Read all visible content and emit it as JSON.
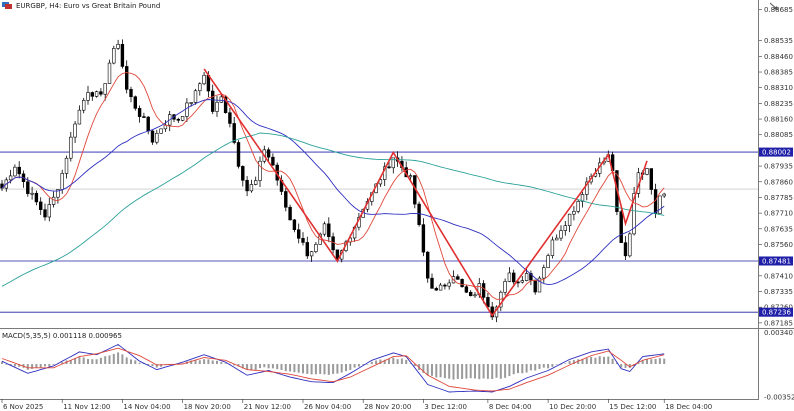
{
  "header": {
    "title": "EURGBP, H4:  Euro vs Great Britain Pound",
    "macd_label": "MACD(5,35,5) 0.001118 0.000965"
  },
  "colors": {
    "bull": "#ffffff",
    "bear": "#000000",
    "ma_fast": "#e0473a",
    "ma_mid": "#2f2fc0",
    "ma_slow": "#2aa198",
    "zigzag": "#e03030",
    "level": "#1f1fa8",
    "macd_line": "#2f2fc0",
    "signal_line": "#e0473a",
    "hist": "#9a9a9a"
  },
  "chart_data": [
    {
      "type": "candlestick",
      "symbol": "EURGBP",
      "timeframe": "H4",
      "x_labels": [
        "6 Nov 2025",
        "11 Nov 12:00",
        "14 Nov 04:00",
        "18 Nov 20:00",
        "21 Nov 12:00",
        "26 Nov 04:00",
        "28 Nov 20:00",
        "3 Dec 12:00",
        "8 Dec 04:00",
        "10 Dec 20:00",
        "15 Dec 12:00",
        "18 Dec 04:00"
      ],
      "y_ticks": [
        "0.88685",
        "0.88535",
        "0.88460",
        "0.88385",
        "0.88310",
        "0.88235",
        "0.88160",
        "0.88085",
        "0.87935",
        "0.87860",
        "0.87785",
        "0.87710",
        "0.87635",
        "0.87560",
        "0.87410",
        "0.87335",
        "0.87260",
        "0.87185"
      ],
      "ylim": [
        0.8717,
        0.8872
      ],
      "levels": [
        {
          "label": "0.88002",
          "value": 0.88002
        },
        {
          "label": "0.87481",
          "value": 0.87481
        },
        {
          "label": "0.87236",
          "value": 0.87236
        }
      ],
      "current_price": 0.87825,
      "zigzag": [
        {
          "bar": 47,
          "price": 0.884
        },
        {
          "bar": 78,
          "price": 0.8748
        },
        {
          "bar": 91,
          "price": 0.88
        },
        {
          "bar": 114,
          "price": 0.8722
        },
        {
          "bar": 141,
          "price": 0.8799
        },
        {
          "bar": 145,
          "price": 0.8766
        },
        {
          "bar": 150,
          "price": 0.8796
        }
      ],
      "waypoints": [
        [
          0,
          0.8783
        ],
        [
          3,
          0.8794
        ],
        [
          6,
          0.8782
        ],
        [
          8,
          0.8776
        ],
        [
          10,
          0.877
        ],
        [
          12,
          0.8778
        ],
        [
          14,
          0.879
        ],
        [
          17,
          0.8815
        ],
        [
          20,
          0.883
        ],
        [
          23,
          0.8826
        ],
        [
          25,
          0.8843
        ],
        [
          27,
          0.8853
        ],
        [
          29,
          0.883
        ],
        [
          31,
          0.8822
        ],
        [
          33,
          0.8815
        ],
        [
          35,
          0.8806
        ],
        [
          37,
          0.8812
        ],
        [
          39,
          0.8817
        ],
        [
          41,
          0.8816
        ],
        [
          43,
          0.8822
        ],
        [
          45,
          0.8828
        ],
        [
          47,
          0.8838
        ],
        [
          49,
          0.882
        ],
        [
          51,
          0.8826
        ],
        [
          53,
          0.8815
        ],
        [
          55,
          0.8795
        ],
        [
          57,
          0.8782
        ],
        [
          59,
          0.8786
        ],
        [
          61,
          0.8802
        ],
        [
          63,
          0.8794
        ],
        [
          65,
          0.878
        ],
        [
          67,
          0.8768
        ],
        [
          69,
          0.876
        ],
        [
          71,
          0.8752
        ],
        [
          73,
          0.8755
        ],
        [
          75,
          0.8764
        ],
        [
          77,
          0.8752
        ],
        [
          78,
          0.8748
        ],
        [
          80,
          0.8757
        ],
        [
          82,
          0.8765
        ],
        [
          84,
          0.8774
        ],
        [
          86,
          0.878
        ],
        [
          88,
          0.8788
        ],
        [
          91,
          0.8798
        ],
        [
          93,
          0.8793
        ],
        [
          95,
          0.8787
        ],
        [
          97,
          0.8764
        ],
        [
          99,
          0.874
        ],
        [
          101,
          0.8733
        ],
        [
          103,
          0.8737
        ],
        [
          105,
          0.8742
        ],
        [
          107,
          0.8735
        ],
        [
          109,
          0.873
        ],
        [
          111,
          0.8736
        ],
        [
          113,
          0.8728
        ],
        [
          114,
          0.8723
        ],
        [
          116,
          0.8733
        ],
        [
          118,
          0.8741
        ],
        [
          120,
          0.8738
        ],
        [
          122,
          0.8743
        ],
        [
          124,
          0.8735
        ],
        [
          126,
          0.8746
        ],
        [
          128,
          0.8757
        ],
        [
          130,
          0.8764
        ],
        [
          132,
          0.877
        ],
        [
          134,
          0.8777
        ],
        [
          136,
          0.8786
        ],
        [
          138,
          0.8792
        ],
        [
          141,
          0.8798
        ],
        [
          142,
          0.8792
        ],
        [
          143,
          0.877
        ],
        [
          144,
          0.8756
        ],
        [
          145,
          0.875
        ],
        [
          146,
          0.8762
        ],
        [
          147,
          0.8781
        ],
        [
          148,
          0.8792
        ],
        [
          149,
          0.8788
        ],
        [
          150,
          0.8794
        ],
        [
          151,
          0.8784
        ],
        [
          152,
          0.8772
        ],
        [
          153,
          0.878
        ],
        [
          154,
          0.8782
        ]
      ]
    },
    {
      "type": "macd",
      "title": "MACD(5,35,5) 0.001118 0.000965",
      "y_ticks": [
        "0.003401",
        "-0.003528"
      ],
      "ylim": [
        -0.00365,
        0.00355
      ],
      "macd_points": [
        [
          0,
          0.0003
        ],
        [
          6,
          -0.001
        ],
        [
          12,
          -0.0002
        ],
        [
          18,
          0.0013
        ],
        [
          22,
          0.001
        ],
        [
          27,
          0.0021
        ],
        [
          32,
          0.0003
        ],
        [
          36,
          -0.0006
        ],
        [
          42,
          0.0002
        ],
        [
          47,
          0.001
        ],
        [
          52,
          0.0002
        ],
        [
          57,
          -0.0012
        ],
        [
          62,
          -0.0007
        ],
        [
          67,
          -0.0014
        ],
        [
          72,
          -0.0019
        ],
        [
          77,
          -0.002
        ],
        [
          81,
          -0.001
        ],
        [
          86,
          0.0004
        ],
        [
          91,
          0.0012
        ],
        [
          94,
          0.0008
        ],
        [
          99,
          -0.0022
        ],
        [
          104,
          -0.003
        ],
        [
          110,
          -0.0029
        ],
        [
          114,
          -0.003
        ],
        [
          118,
          -0.0024
        ],
        [
          122,
          -0.0015
        ],
        [
          127,
          -0.0007
        ],
        [
          132,
          0.0005
        ],
        [
          137,
          0.0013
        ],
        [
          141,
          0.0016
        ],
        [
          144,
          -0.0005
        ],
        [
          146,
          -0.0008
        ],
        [
          149,
          0.0008
        ],
        [
          154,
          0.0011
        ]
      ],
      "signal_points": [
        [
          0,
          0.0006
        ],
        [
          6,
          -0.0004
        ],
        [
          12,
          -0.0004
        ],
        [
          18,
          0.0008
        ],
        [
          22,
          0.0011
        ],
        [
          27,
          0.0017
        ],
        [
          32,
          0.0009
        ],
        [
          36,
          -0.0001
        ],
        [
          42,
          0.0
        ],
        [
          47,
          0.0007
        ],
        [
          52,
          0.0004
        ],
        [
          57,
          -0.0006
        ],
        [
          62,
          -0.0008
        ],
        [
          67,
          -0.0011
        ],
        [
          72,
          -0.0016
        ],
        [
          77,
          -0.0019
        ],
        [
          81,
          -0.0014
        ],
        [
          86,
          -0.0003
        ],
        [
          91,
          0.0008
        ],
        [
          94,
          0.0009
        ],
        [
          99,
          -0.0012
        ],
        [
          104,
          -0.0024
        ],
        [
          110,
          -0.0028
        ],
        [
          114,
          -0.0029
        ],
        [
          118,
          -0.0027
        ],
        [
          122,
          -0.002
        ],
        [
          127,
          -0.0012
        ],
        [
          132,
          -0.0001
        ],
        [
          137,
          0.0009
        ],
        [
          141,
          0.0014
        ],
        [
          144,
          0.0004
        ],
        [
          146,
          -0.0003
        ],
        [
          149,
          0.0004
        ],
        [
          154,
          0.001
        ]
      ]
    }
  ]
}
